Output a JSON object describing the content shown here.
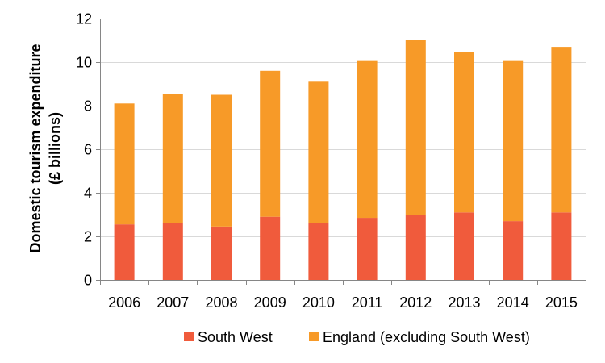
{
  "chart_data": {
    "type": "bar",
    "stacked": true,
    "title": "",
    "xlabel": "",
    "ylabel_lines": [
      "Domestic tourism expenditure",
      "(£ billions)"
    ],
    "categories": [
      "2006",
      "2007",
      "2008",
      "2009",
      "2010",
      "2011",
      "2012",
      "2013",
      "2014",
      "2015"
    ],
    "ylim": [
      0,
      12
    ],
    "yticks": [
      0,
      2,
      4,
      6,
      8,
      10,
      12
    ],
    "grid": true,
    "legend_position": "bottom",
    "series": [
      {
        "name": "South West",
        "color": "#f05b3c",
        "values": [
          2.55,
          2.6,
          2.45,
          2.9,
          2.6,
          2.85,
          3.0,
          3.1,
          2.7,
          3.1
        ]
      },
      {
        "name": "England (excluding South West)",
        "color": "#f79a28",
        "values": [
          5.55,
          5.95,
          6.05,
          6.7,
          6.5,
          7.2,
          8.0,
          7.35,
          7.35,
          7.6
        ]
      }
    ]
  }
}
